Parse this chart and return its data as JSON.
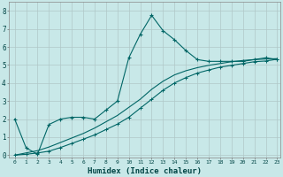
{
  "xlabel": "Humidex (Indice chaleur)",
  "background_color": "#c8e8e8",
  "grid_color": "#b0c8c8",
  "line_color": "#006666",
  "xlim": [
    -0.5,
    23.3
  ],
  "ylim": [
    -0.15,
    8.5
  ],
  "xticks": [
    0,
    1,
    2,
    3,
    4,
    5,
    6,
    7,
    8,
    9,
    10,
    11,
    12,
    13,
    14,
    15,
    16,
    17,
    18,
    19,
    20,
    21,
    22,
    23
  ],
  "yticks": [
    0,
    1,
    2,
    3,
    4,
    5,
    6,
    7,
    8
  ],
  "series1_x": [
    0,
    1,
    2,
    3,
    4,
    5,
    6,
    7,
    8,
    9,
    10,
    11,
    12,
    13,
    14,
    15,
    16,
    17,
    18,
    19,
    20,
    21,
    22,
    23
  ],
  "series1_y": [
    2.0,
    0.4,
    0.05,
    1.7,
    2.0,
    2.1,
    2.1,
    2.0,
    2.5,
    3.0,
    5.4,
    6.7,
    7.75,
    6.9,
    6.4,
    5.8,
    5.3,
    5.2,
    5.2,
    5.2,
    5.2,
    5.3,
    5.4,
    5.3
  ],
  "series2_x": [
    0,
    1,
    2,
    3,
    4,
    5,
    6,
    7,
    8,
    9,
    10,
    11,
    12,
    13,
    14,
    15,
    16,
    17,
    18,
    19,
    20,
    21,
    22,
    23
  ],
  "series2_y": [
    0.0,
    0.05,
    0.12,
    0.22,
    0.42,
    0.65,
    0.88,
    1.12,
    1.42,
    1.72,
    2.1,
    2.6,
    3.1,
    3.6,
    4.0,
    4.3,
    4.55,
    4.72,
    4.88,
    4.98,
    5.08,
    5.18,
    5.22,
    5.32
  ],
  "series3_x": [
    0,
    2,
    3,
    4,
    5,
    6,
    7,
    8,
    9,
    10,
    11,
    12,
    13,
    14,
    15,
    16,
    17,
    18,
    19,
    20,
    21,
    22,
    23
  ],
  "series3_y": [
    0.0,
    0.25,
    0.45,
    0.7,
    0.95,
    1.2,
    1.5,
    1.85,
    2.2,
    2.65,
    3.1,
    3.65,
    4.1,
    4.45,
    4.68,
    4.85,
    4.98,
    5.08,
    5.18,
    5.25,
    5.3,
    5.33,
    5.35
  ]
}
